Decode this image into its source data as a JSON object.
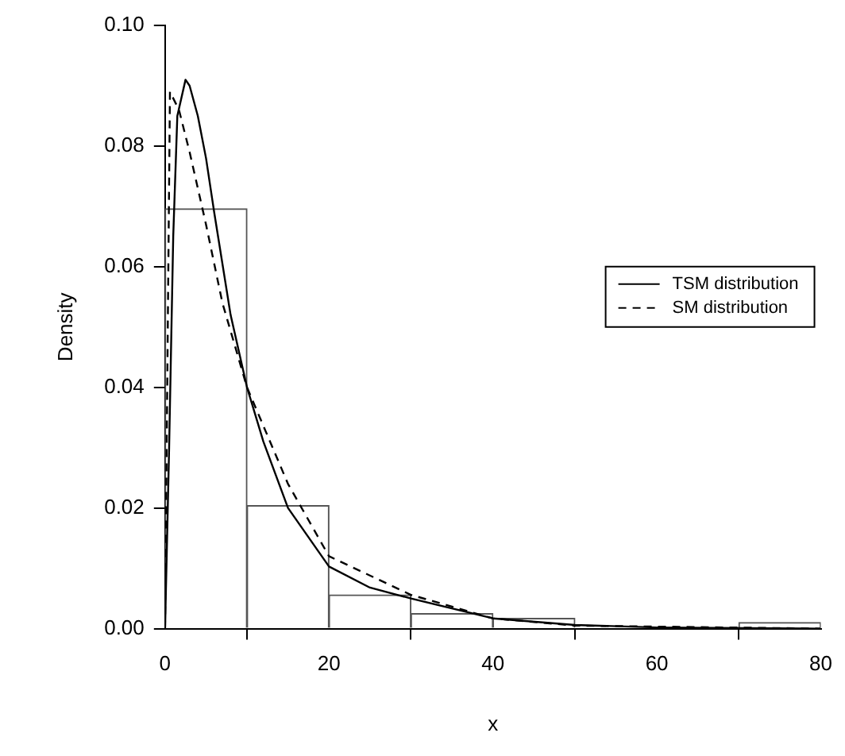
{
  "chart_data": {
    "type": "histogram",
    "xlabel": "x",
    "ylabel": "Density",
    "bins": [
      0,
      10,
      20,
      30,
      40,
      50,
      60,
      70,
      80
    ],
    "values": [
      0.0696,
      0.0204,
      0.0056,
      0.0025,
      0.0017,
      0,
      0,
      0.001
    ],
    "color": "#ffffff",
    "series": [
      {
        "name": "TSM distribution",
        "type": "line",
        "color": "#000000",
        "line_style": "solid",
        "x": [
          0,
          0.5,
          1,
          1.5,
          2.5,
          3,
          4,
          5,
          6,
          8,
          10,
          12,
          15,
          20,
          25,
          30,
          40,
          50,
          60,
          80
        ],
        "values": [
          0,
          0.03,
          0.065,
          0.085,
          0.091,
          0.09,
          0.085,
          0.078,
          0.069,
          0.052,
          0.04,
          0.031,
          0.02,
          0.0103,
          0.0068,
          0.005,
          0.0017,
          0.0006,
          0.0002,
          0
        ]
      },
      {
        "name": "SM distribution",
        "type": "line",
        "color": "#000000",
        "line_style": "dashed",
        "x": [
          0,
          0.6,
          1.7,
          3,
          5,
          7,
          10,
          15,
          20,
          30,
          40,
          50,
          80
        ],
        "values": [
          0,
          0.089,
          0.086,
          0.079,
          0.067,
          0.054,
          0.04,
          0.024,
          0.012,
          0.0056,
          0.0017,
          0.0005,
          0
        ]
      }
    ],
    "xlim": [
      0,
      80
    ],
    "xticks": [
      0,
      20,
      40,
      60,
      80
    ],
    "ylim": [
      0,
      0.1
    ],
    "yticks": [
      {
        "value": 0,
        "label": "0.00"
      },
      {
        "value": 0.02,
        "label": "0.02"
      },
      {
        "value": 0.04,
        "label": "0.04"
      },
      {
        "value": 0.06,
        "label": "0.06"
      },
      {
        "value": 0.08,
        "label": "0.08"
      },
      {
        "value": 0.1,
        "label": "0.10"
      }
    ],
    "grid": false,
    "legend": "right",
    "marker": "none"
  }
}
